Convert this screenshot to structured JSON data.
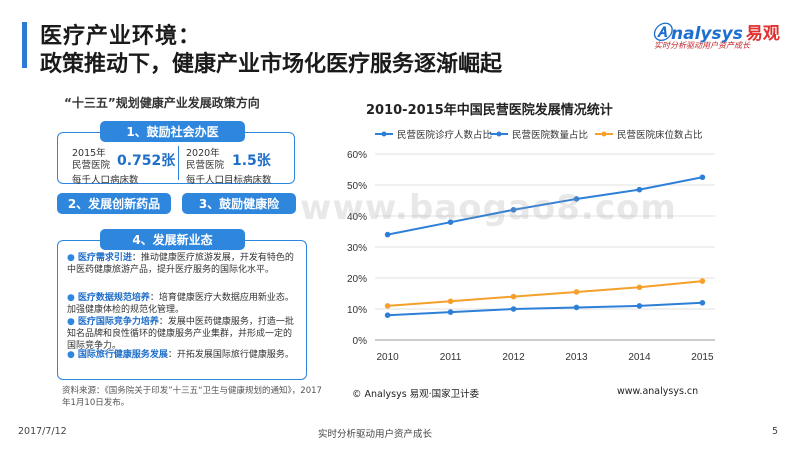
{
  "header": {
    "title_line1": "医疗产业环境：",
    "title_line2": "政策推动下，健康产业市场化医疗服务逐渐崛起"
  },
  "logo": {
    "brand": "nalysys",
    "brand_cn": "易观",
    "tagline": "实时分析驱动用户资产成长"
  },
  "left_panel": {
    "title": "“十三五”规划健康产业发展政策方向",
    "section1_label": "1、鼓励社会办医",
    "stat_a_prefix": "2015年\n民营医院",
    "stat_a_value": "0.752张",
    "stat_a_desc": "每千人口病床数",
    "stat_b_prefix": "2020年\n民营医院",
    "stat_b_value": "1.5张",
    "stat_b_desc": "每千人口目标病床数",
    "section2_label": "2、发展创新药品",
    "section3_label": "3、鼓励健康险",
    "section4_label": "4、发展新业态",
    "bullets": [
      {
        "key": "医疗需求引进",
        "text": "：推动健康医疗旅游发展，开发有特色的中医药健康旅游产品，提升医疗服务的国际化水平。"
      },
      {
        "key": "医疗数据规范培养",
        "text": "：培育健康医疗大数据应用新业态。加强健康体检的规范化管理。"
      },
      {
        "key": "医疗国际竞争力培养",
        "text": "：发展中医药健康服务，打造一批知名品牌和良性循环的健康服务产业集群，并形成一定的国际竞争力。"
      },
      {
        "key": "国际旅行健康服务发展",
        "text": "：开拓发展国际旅行健康服务。"
      }
    ],
    "source": "资料来源：《国务院关于印发”十三五“卫生与健康规划的通知》，2017年1月10日发布。"
  },
  "chart_data": {
    "type": "line",
    "title": "2010-2015年中国民营医院发展情况统计",
    "x": [
      "2010",
      "2011",
      "2012",
      "2013",
      "2014",
      "2015"
    ],
    "ylim": [
      0,
      60
    ],
    "yticks": [
      "0%",
      "10%",
      "20%",
      "30%",
      "40%",
      "50%",
      "60%"
    ],
    "series": [
      {
        "name": "民营医院诊疗人数占比",
        "color": "#2e7fd8",
        "values": [
          8,
          9,
          10,
          10.5,
          11,
          12
        ]
      },
      {
        "name": "民营医院数量占比",
        "color": "#2e7fd8",
        "values": [
          34,
          38,
          42,
          45.5,
          48.5,
          52.5
        ]
      },
      {
        "name": "民营医院床位数占比",
        "color": "#f5a02a",
        "values": [
          11,
          12.5,
          14,
          15.5,
          17,
          19
        ]
      }
    ],
    "grid": true,
    "legend": "top"
  },
  "chart_footer": {
    "copyright": "© Analysys 易观·国家卫计委",
    "site": "www.analysys.cn"
  },
  "watermark": {
    "text": "www.baogao8.com"
  },
  "footer": {
    "date": "2017/7/12",
    "center": "实时分析驱动用户资产成长",
    "page": "5"
  }
}
